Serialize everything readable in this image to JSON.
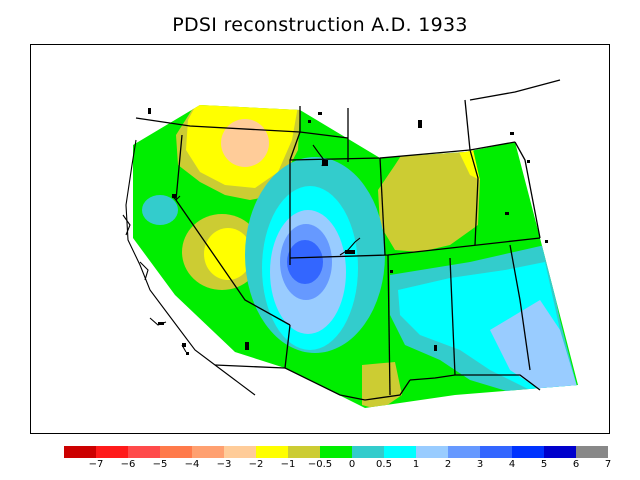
{
  "title": "PDSI reconstruction A.D. 1933",
  "map": {
    "region": "western-united-states",
    "variable": "PDSI"
  },
  "legend": {
    "breaks": [
      "−7",
      "−6",
      "−5",
      "−4",
      "−3",
      "−2",
      "−1",
      "−0.5",
      "0",
      "0.5",
      "1",
      "2",
      "3",
      "4",
      "5",
      "6",
      "7"
    ],
    "colors": [
      "#cc0000",
      "#ff1a1a",
      "#ff4a4a",
      "#ff7a4a",
      "#ffa070",
      "#ffcc99",
      "#ffff00",
      "#cccc33",
      "#00ee00",
      "#33cccc",
      "#00ffff",
      "#99ccff",
      "#6699ff",
      "#3366ff",
      "#0033ff",
      "#0000cc",
      "#888888"
    ]
  },
  "colors": {
    "dry_strong": "#ffcc99",
    "dry": "#ffff00",
    "dry_mild": "#cccc33",
    "near_normal": "#00ee00",
    "wet_mild": "#33cccc",
    "wet": "#00ffff",
    "wet_moderate": "#99ccff",
    "wet_strong": "#6699ff",
    "wet_very_strong": "#3366ff"
  }
}
